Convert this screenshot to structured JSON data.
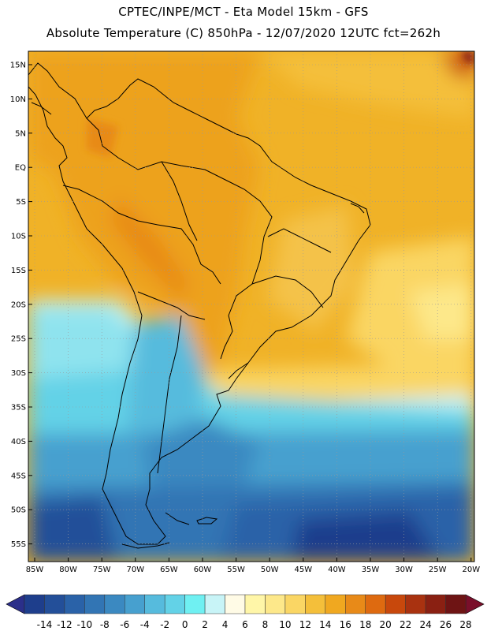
{
  "header": {
    "title_line1": "CPTEC/INPE/MCT -  Eta Model 15km - GFS",
    "title_line2": "Absolute Temperature (C) 850hPa - 12/07/2020 12UTC fct=262h"
  },
  "map": {
    "lat_labels": [
      "15N",
      "10N",
      "5N",
      "EQ",
      "5S",
      "10S",
      "15S",
      "20S",
      "25S",
      "30S",
      "35S",
      "40S",
      "45S",
      "50S",
      "55S"
    ],
    "lon_labels": [
      "85W",
      "80W",
      "75W",
      "70W",
      "65W",
      "60W",
      "55W",
      "50W",
      "45W",
      "40W",
      "35W",
      "30W",
      "25W",
      "20W"
    ]
  },
  "colorbar": {
    "labels": [
      "-14",
      "-12",
      "-10",
      "-8",
      "-6",
      "-4",
      "-2",
      "0",
      "2",
      "4",
      "6",
      "8",
      "10",
      "12",
      "14",
      "16",
      "18",
      "20",
      "22",
      "24",
      "26",
      "28"
    ],
    "colors": [
      "#1e3e8c",
      "#234f99",
      "#2a62a8",
      "#3275b4",
      "#3b89c1",
      "#47a0cf",
      "#56bbdd",
      "#63d2e7",
      "#6ff0f2",
      "#c8f4f7",
      "#fffbe6",
      "#fff6a8",
      "#fde88a",
      "#fad664",
      "#f4bf3a",
      "#f0a820",
      "#e88a18",
      "#de6a10",
      "#c8480c",
      "#a93210",
      "#8a2012",
      "#6e1414"
    ],
    "arrow_left": "#2b2f8a",
    "arrow_right": "#7a0f2a"
  }
}
